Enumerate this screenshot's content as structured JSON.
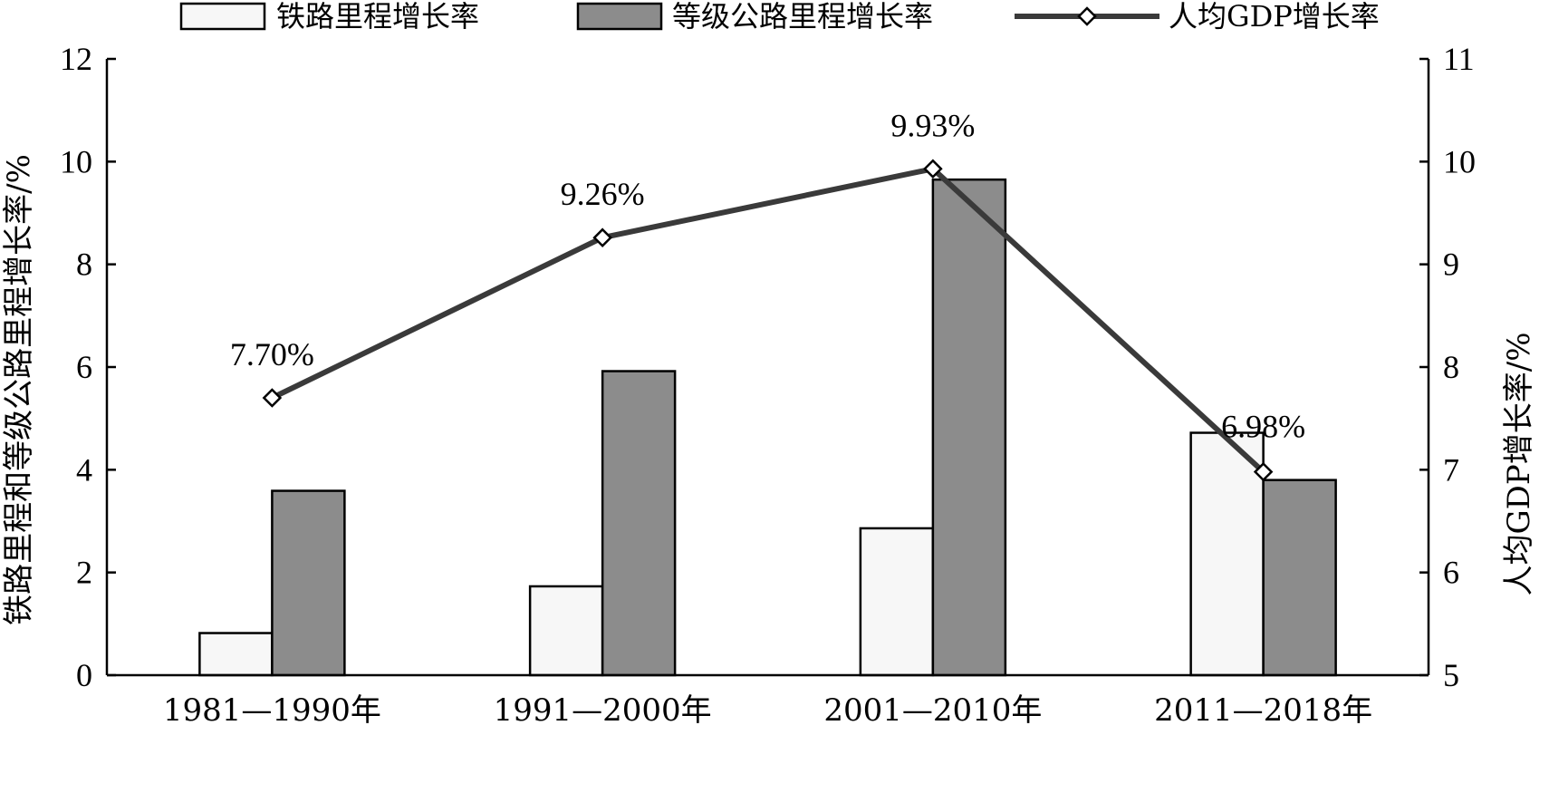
{
  "chart_data": {
    "type": "bar",
    "categories": [
      "1981—1990年",
      "1991—2000年",
      "2001—2010年",
      "2011—2018年"
    ],
    "series": [
      {
        "name": "铁路里程增长率",
        "kind": "bar",
        "axis": "left",
        "color": "#f7f7f7",
        "values": [
          0.82,
          1.73,
          2.86,
          4.72
        ]
      },
      {
        "name": "等级公路里程增长率",
        "kind": "bar",
        "axis": "left",
        "color": "#8c8c8c",
        "values": [
          3.59,
          5.92,
          9.65,
          3.8
        ]
      },
      {
        "name": "人均GDP增长率",
        "kind": "line",
        "axis": "right",
        "color": "#3a3a3a",
        "values": [
          7.7,
          9.26,
          9.93,
          6.98
        ],
        "labels": [
          "7.70%",
          "9.26%",
          "9.93%",
          "6.98%"
        ]
      }
    ],
    "ylabel": "铁路里程和等级公路里程增长率/%",
    "y2label": "人均GDP增长率/%",
    "ylim": [
      0,
      12
    ],
    "y2lim": [
      5,
      11
    ],
    "yticks": [
      "0",
      "2",
      "4",
      "6",
      "8",
      "10",
      "12"
    ],
    "y2ticks": [
      "5",
      "6",
      "7",
      "8",
      "9",
      "10",
      "11"
    ],
    "legend_position": "top",
    "grid": false
  }
}
